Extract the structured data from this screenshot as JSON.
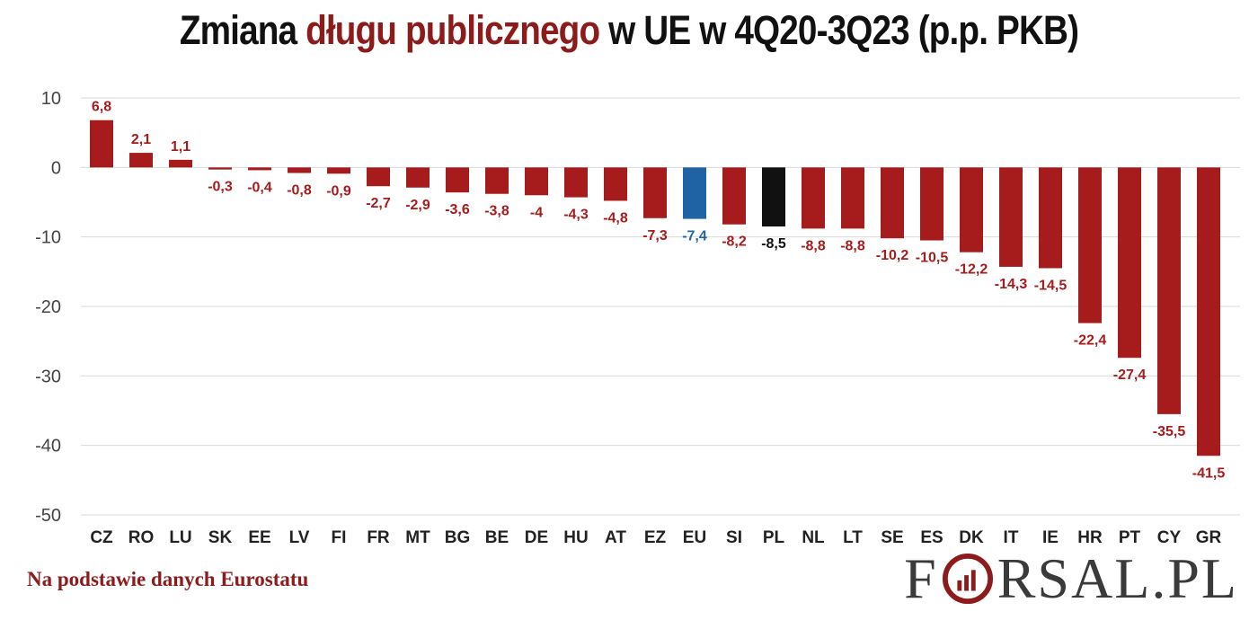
{
  "title": {
    "part1": "Zmiana ",
    "highlight": "długu publicznego",
    "part2": " w UE w 4Q20-3Q23 (p.p. PKB)"
  },
  "source": "Na podstawie danych Eurostatu",
  "logo": {
    "left": "F",
    "right": "RSAL.PL"
  },
  "colors": {
    "default": "#a61b1b",
    "eu": "#1f63a4",
    "pl": "#111111",
    "title_highlight": "#8e1b1b",
    "grid": "#d9d9d9"
  },
  "chart_data": {
    "type": "bar",
    "title": "Zmiana długu publicznego w UE w 4Q20-3Q23 (p.p. PKB)",
    "ylim": [
      -50,
      10
    ],
    "yticks": [
      10,
      0,
      -10,
      -20,
      -30,
      -40,
      -50
    ],
    "grid": true,
    "categories": [
      "CZ",
      "RO",
      "LU",
      "SK",
      "EE",
      "LV",
      "FI",
      "FR",
      "MT",
      "BG",
      "BE",
      "DE",
      "HU",
      "AT",
      "EZ",
      "EU",
      "SI",
      "PL",
      "NL",
      "LT",
      "SE",
      "ES",
      "DK",
      "IT",
      "IE",
      "HR",
      "PT",
      "CY",
      "GR"
    ],
    "values": [
      6.8,
      2.1,
      1.1,
      -0.3,
      -0.4,
      -0.8,
      -0.9,
      -2.7,
      -2.9,
      -3.6,
      -3.8,
      -4,
      -4.3,
      -4.8,
      -7.3,
      -7.4,
      -8.2,
      -8.5,
      -8.8,
      -8.8,
      -10.2,
      -10.5,
      -12.2,
      -14.3,
      -14.5,
      -22.4,
      -27.4,
      -35.5,
      -41.5
    ],
    "labels": [
      "6,8",
      "2,1",
      "1,1",
      "-0,3",
      "-0,4",
      "-0,8",
      "-0,9",
      "-2,7",
      "-2,9",
      "-3,6",
      "-3,8",
      "-4",
      "-4,3",
      "-4,8",
      "-7,3",
      "-7,4",
      "-8,2",
      "-8,5",
      "-8,8",
      "-8,8",
      "-10,2",
      "-10,5",
      "-12,2",
      "-14,3",
      "-14,5",
      "-22,4",
      "-27,4",
      "-35,5",
      "-41,5"
    ],
    "highlight": {
      "EU": "eu",
      "PL": "pl"
    }
  }
}
